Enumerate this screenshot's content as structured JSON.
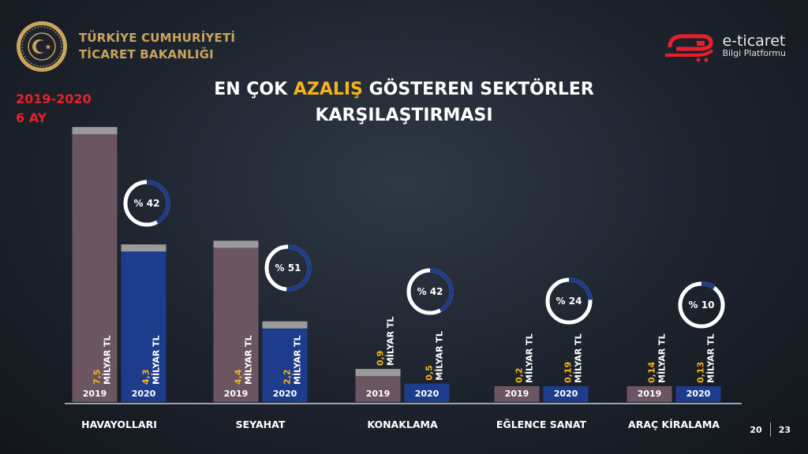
{
  "header": {
    "ministry_line1": "TÜRKİYE CUMHURİYETİ",
    "ministry_line2": "TİCARET BAKANLIĞI",
    "brand_name": "e-ticaret",
    "brand_sub": "Bilgi Platformu"
  },
  "title": {
    "part1": "EN ÇOK ",
    "highlight": "AZALIŞ",
    "part2": " GÖSTEREN SEKTÖRLER",
    "line2": "KARŞILAŞTIRMASI"
  },
  "period": {
    "line1": "2019-2020",
    "line2": "6 AY"
  },
  "colors": {
    "bar_2019": "#6b5560",
    "bar_2020": "#1e3c8c",
    "value_label": "#f5b21c",
    "ring_fill": "#1e3c8c",
    "ring_track": "#ffffff",
    "title_highlight": "#f5b21c",
    "period": "#e8202a"
  },
  "icons": [
    "ministry-seal-icon",
    "eticaret-logo-icon",
    "cart-icon"
  ],
  "chart_data": {
    "type": "bar",
    "categories": [
      "HAVAYOLLARI",
      "SEYAHAT",
      "KONAKLAMA",
      "EĞLENCE SANAT",
      "ARAÇ KİRALAMA"
    ],
    "series": [
      {
        "name": "2019",
        "values": [
          7.5,
          4.4,
          0.9,
          0.2,
          0.14
        ],
        "labels": [
          "7,5",
          "4,4",
          "0,9",
          "0,2",
          "0,14"
        ]
      },
      {
        "name": "2020",
        "values": [
          4.3,
          2.2,
          0.5,
          0.19,
          0.13
        ],
        "labels": [
          "4,3",
          "2,2",
          "0,5",
          "0,19",
          "0,13"
        ]
      }
    ],
    "unit": "MİLYAR TL",
    "decrease_percent": [
      42,
      51,
      42,
      24,
      10
    ],
    "decrease_labels": [
      "% 42",
      "% 51",
      "% 42",
      "% 24",
      "% 10"
    ]
  },
  "page": {
    "left": "20",
    "right": "23"
  }
}
